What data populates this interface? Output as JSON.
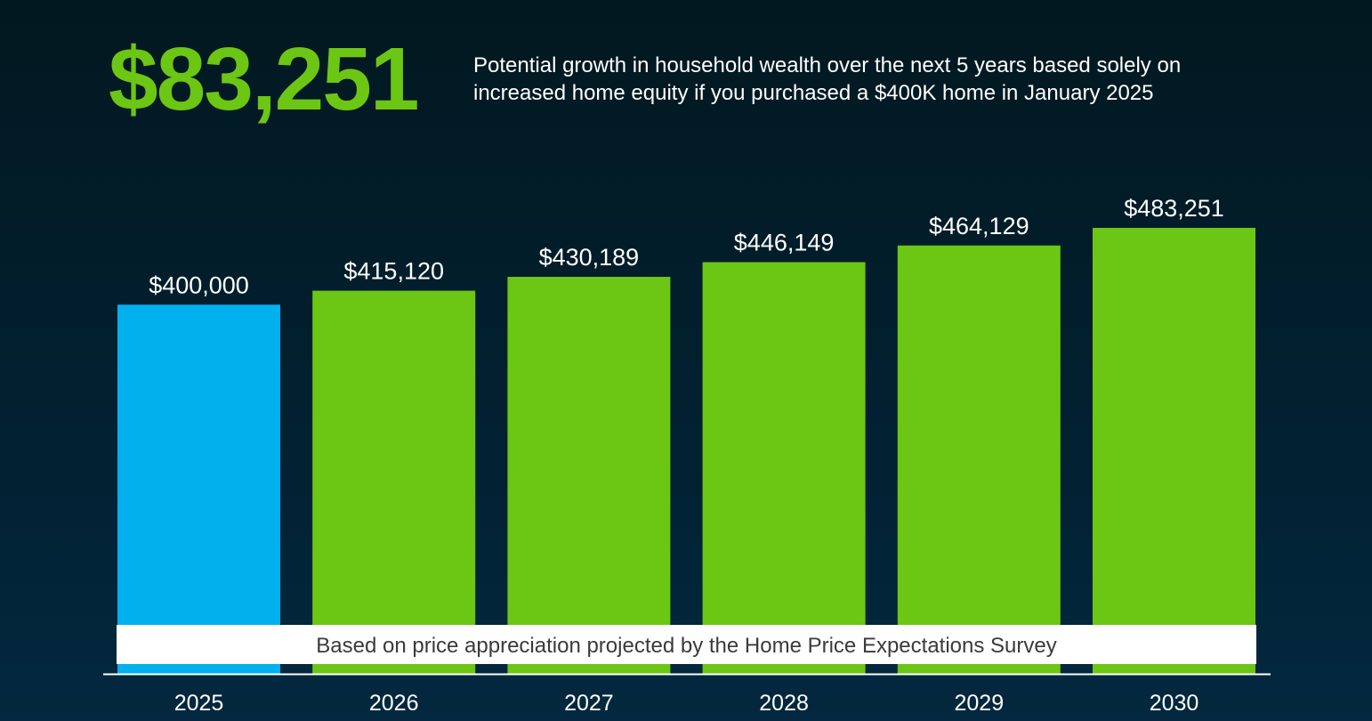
{
  "headline": "$83,251",
  "subtitle_lines": [
    "Potential growth in household wealth over the next 5 years based solely on",
    "increased home equity if you purchased a $400K home in January 2025"
  ],
  "footnote": "Based on price appreciation projected by the Home Price Expectations Survey",
  "colors": {
    "baseline_bar": "#02b0ee",
    "projected_bar": "#6cc614",
    "headline": "#6cc614",
    "text": "#ffffff",
    "note_box": "#ffffff",
    "note_text": "#3a3a3a"
  },
  "chart_data": {
    "type": "bar",
    "categories": [
      "2025",
      "2026",
      "2027",
      "2028",
      "2029",
      "2030"
    ],
    "values": [
      400000,
      415120,
      430189,
      446149,
      464129,
      483251
    ],
    "value_labels": [
      "$400,000",
      "$415,120",
      "$430,189",
      "$446,149",
      "$464,129",
      "$483,251"
    ],
    "highlight_first": true,
    "grid": false,
    "legend": "none"
  }
}
